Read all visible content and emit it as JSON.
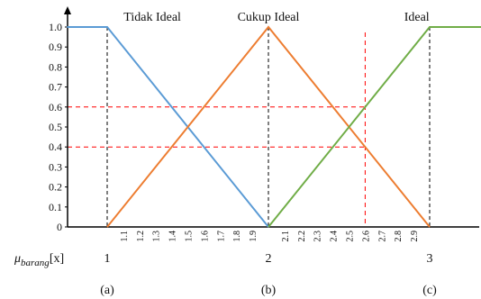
{
  "chart_data": {
    "type": "line",
    "title": "",
    "xlabel": "μ_barang[x]",
    "ylabel": "",
    "xlim": [
      0.75,
      3.35
    ],
    "ylim": [
      0,
      1
    ],
    "y_ticks": [
      "0",
      "0.1",
      "0.2",
      "0.3",
      "0.4",
      "0.5",
      "0.6",
      "0.7",
      "0.8",
      "0.9",
      "1.0"
    ],
    "x_ticks_major": [
      "1",
      "2",
      "3"
    ],
    "x_ticks_minor": [
      "1.1",
      "1.2",
      "1.3",
      "1.4",
      "1.5",
      "1.6",
      "1.7",
      "1.8",
      "1.9",
      "2.1",
      "2.2",
      "2.3",
      "2.4",
      "2.5",
      "2.6",
      "2.7",
      "2.8",
      "2.9"
    ],
    "series": [
      {
        "name": "Tidak Ideal",
        "color": "#5b9bd5",
        "x": [
          0.75,
          1,
          2
        ],
        "y": [
          1,
          1,
          0
        ]
      },
      {
        "name": "Cukup Ideal",
        "color": "#ed7d31",
        "x": [
          1,
          2,
          3
        ],
        "y": [
          0,
          1,
          0
        ]
      },
      {
        "name": "Ideal",
        "color": "#70ad47",
        "x": [
          2,
          3,
          3.35
        ],
        "y": [
          0,
          1,
          1
        ]
      }
    ],
    "reference_lines": {
      "horizontal": [
        0.6,
        0.4
      ],
      "vertical_red": [
        2.6
      ],
      "vertical_black": [
        1,
        2,
        3
      ],
      "color": "#ff0000"
    },
    "panel_labels": [
      "(a)",
      "(b)",
      "(c)"
    ]
  }
}
